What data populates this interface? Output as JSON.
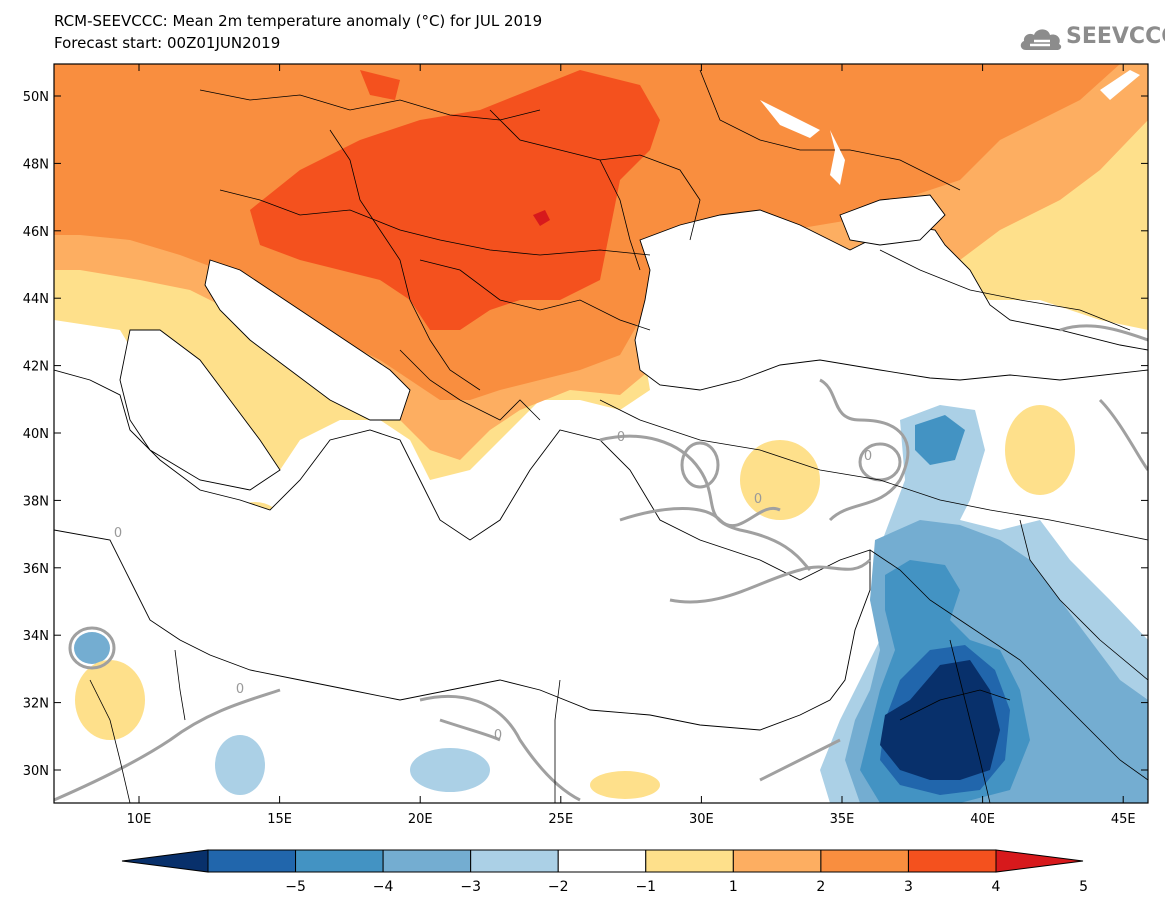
{
  "header": {
    "title": "RCM-SEEVCCC: Mean 2m temperature anomaly (°C) for JUL 2019",
    "subtitle": "Forecast start: 00Z01JUN2019",
    "logo_text": "SEEVCCC",
    "logo_icon": "cloud-icon"
  },
  "map": {
    "lat_labels": [
      "50N",
      "48N",
      "46N",
      "44N",
      "42N",
      "40N",
      "38N",
      "36N",
      "34N",
      "32N",
      "30N"
    ],
    "lon_labels": [
      "10E",
      "15E",
      "20E",
      "25E",
      "30E",
      "35E",
      "40E",
      "45E"
    ],
    "contour_label": "0"
  },
  "colorbar": {
    "tick_labels": [
      "−5",
      "−4",
      "−3",
      "−2",
      "−1",
      "1",
      "2",
      "3",
      "4",
      "5"
    ],
    "colors": [
      "#08306b",
      "#2166ac",
      "#4393c3",
      "#74add1",
      "#abd0e6",
      "#ffffff",
      "#fee08b",
      "#fdae61",
      "#f98e3f",
      "#f4511e",
      "#d7191c"
    ]
  }
}
